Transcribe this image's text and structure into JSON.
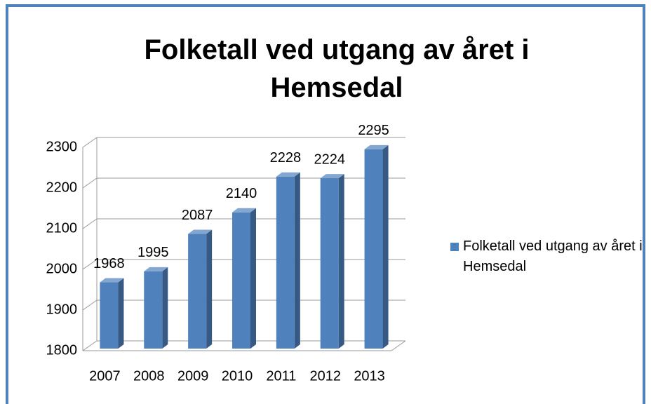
{
  "chart_data": {
    "type": "bar",
    "title": "Folketall ved utgang av året i Hemsedal",
    "categories": [
      "2007",
      "2008",
      "2009",
      "2010",
      "2011",
      "2012",
      "2013"
    ],
    "series": [
      {
        "name": "Folketall ved utgang av året i Hemsedal",
        "color": "#4f81bd",
        "values": [
          1968,
          1995,
          2087,
          2140,
          2228,
          2224,
          2295
        ]
      }
    ],
    "ylim": [
      1800,
      2300
    ],
    "yticks": [
      1800,
      1900,
      2000,
      2100,
      2200,
      2300
    ],
    "grid": true,
    "legend": "right"
  }
}
